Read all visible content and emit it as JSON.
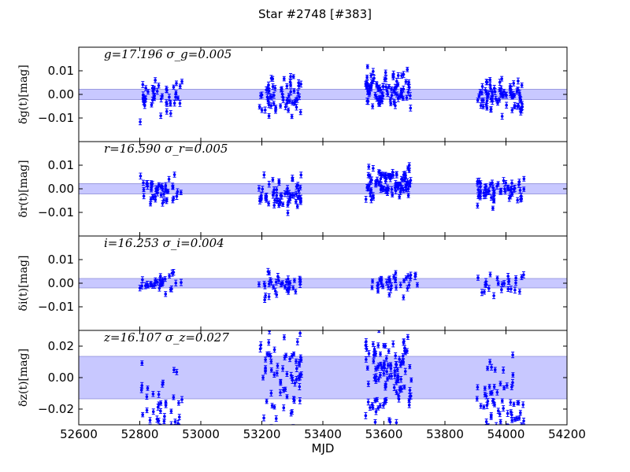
{
  "chart_data": {
    "type": "scatter",
    "title": "Star #2748 [#383]",
    "xlabel": "MJD",
    "xlim": [
      52600,
      54200
    ],
    "xticks": [
      "52600",
      "52800",
      "53000",
      "53200",
      "53400",
      "53600",
      "53800",
      "54000",
      "54200"
    ],
    "marker_color": "#0000ff",
    "band_color": "#c8c8ff",
    "panels": [
      {
        "band": "g",
        "annotation": "g=17.196  σ_g=0.005",
        "ylabel": "δg(t)[mag]",
        "ylim": [
          -0.02,
          0.02
        ],
        "yticks": [
          0.01,
          0.0,
          -0.01
        ],
        "ytick_labels": [
          "0.01",
          "0.00",
          "−0.01"
        ],
        "band_halfwidth": 0.0022,
        "spread": 0.0065,
        "clip": false,
        "seasons": [
          {
            "start": 52800,
            "end": 52940,
            "n": 45,
            "mean": -0.001
          },
          {
            "start": 53190,
            "end": 53330,
            "n": 60,
            "mean": -0.001
          },
          {
            "start": 53540,
            "end": 53690,
            "n": 90,
            "mean": 0.002
          },
          {
            "start": 53905,
            "end": 54060,
            "n": 75,
            "mean": -0.001
          }
        ]
      },
      {
        "band": "r",
        "annotation": "r=16.590  σ_r=0.005",
        "ylabel": "δr(t)[mag]",
        "ylim": [
          -0.02,
          0.02
        ],
        "yticks": [
          0.01,
          0.0,
          -0.01
        ],
        "ytick_labels": [
          "0.01",
          "0.00",
          "−0.01"
        ],
        "band_halfwidth": 0.0022,
        "spread": 0.0055,
        "clip": false,
        "seasons": [
          {
            "start": 52800,
            "end": 52940,
            "n": 45,
            "mean": -0.001
          },
          {
            "start": 53190,
            "end": 53330,
            "n": 60,
            "mean": -0.002
          },
          {
            "start": 53540,
            "end": 53690,
            "n": 90,
            "mean": 0.002
          },
          {
            "start": 53905,
            "end": 54060,
            "n": 60,
            "mean": -0.001
          }
        ]
      },
      {
        "band": "i",
        "annotation": "i=16.253  σ_i=0.004",
        "ylabel": "δi(t)[mag]",
        "ylim": [
          -0.02,
          0.02
        ],
        "yticks": [
          0.01,
          0.0,
          -0.01
        ],
        "ytick_labels": [
          "0.01",
          "0.00",
          "−0.01"
        ],
        "band_halfwidth": 0.002,
        "spread": 0.004,
        "clip": false,
        "seasons": [
          {
            "start": 52800,
            "end": 52940,
            "n": 30,
            "mean": 0.0
          },
          {
            "start": 53190,
            "end": 53330,
            "n": 35,
            "mean": -0.001
          },
          {
            "start": 53560,
            "end": 53710,
            "n": 35,
            "mean": 0.0
          },
          {
            "start": 53905,
            "end": 54060,
            "n": 25,
            "mean": 0.0
          }
        ]
      },
      {
        "band": "z",
        "annotation": "z=16.107  σ_z=0.027",
        "ylabel": "δz(t)[mag]",
        "ylim": [
          -0.03,
          0.03
        ],
        "yticks": [
          0.02,
          0.0,
          -0.02
        ],
        "ytick_labels": [
          "0.02",
          "0.00",
          "−0.02"
        ],
        "band_halfwidth": 0.0135,
        "spread": 0.03,
        "clip": true,
        "seasons": [
          {
            "start": 52800,
            "end": 52940,
            "n": 50,
            "mean": -0.024
          },
          {
            "start": 53190,
            "end": 53330,
            "n": 70,
            "mean": 0.002
          },
          {
            "start": 53540,
            "end": 53690,
            "n": 110,
            "mean": 0.006
          },
          {
            "start": 53905,
            "end": 54060,
            "n": 90,
            "mean": -0.024
          }
        ]
      }
    ]
  }
}
